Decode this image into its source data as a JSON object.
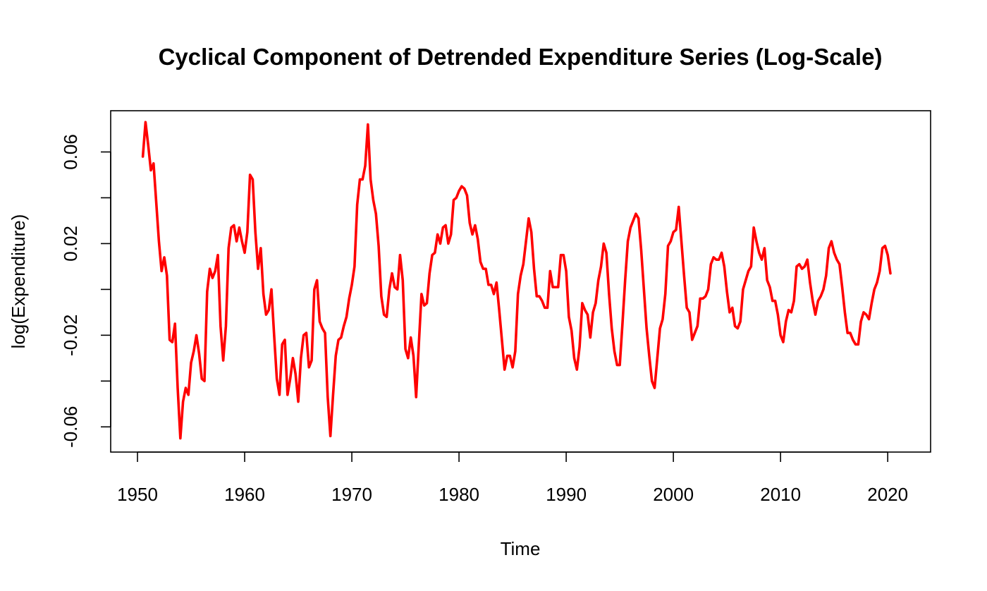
{
  "chart_data": {
    "type": "line",
    "title": "Cyclical Component of Detrended Expenditure Series (Log-Scale)",
    "xlabel": "Time",
    "ylabel": "log(Expenditure)",
    "xlim": [
      1947.5,
      2024.0
    ],
    "ylim": [
      -0.071,
      0.078
    ],
    "x_ticks": [
      1950,
      1960,
      1970,
      1980,
      1990,
      2000,
      2010,
      2020
    ],
    "x_tick_labels": [
      "1950",
      "1960",
      "1970",
      "1980",
      "1990",
      "2000",
      "2010",
      "2020"
    ],
    "y_ticks": [
      -0.06,
      -0.04,
      -0.02,
      0.0,
      0.02,
      0.04,
      0.06
    ],
    "y_tick_labels": [
      "-0.06",
      "",
      "-0.02",
      "",
      "0.02",
      "",
      "0.06"
    ],
    "grid": false,
    "legend": "none",
    "series": [
      {
        "color": "#ff0000",
        "x_start": 1950.5,
        "x_step": 0.25,
        "values": [
          0.058,
          0.073,
          0.063,
          0.052,
          0.055,
          0.038,
          0.021,
          0.008,
          0.014,
          0.006,
          -0.022,
          -0.023,
          -0.015,
          -0.043,
          -0.065,
          -0.049,
          -0.043,
          -0.046,
          -0.032,
          -0.027,
          -0.02,
          -0.028,
          -0.039,
          -0.04,
          -0.001,
          0.009,
          0.005,
          0.008,
          0.015,
          -0.016,
          -0.031,
          -0.016,
          0.018,
          0.027,
          0.028,
          0.021,
          0.027,
          0.021,
          0.016,
          0.025,
          0.05,
          0.048,
          0.025,
          0.009,
          0.018,
          -0.002,
          -0.011,
          -0.009,
          0.0,
          -0.02,
          -0.039,
          -0.046,
          -0.024,
          -0.022,
          -0.046,
          -0.039,
          -0.03,
          -0.037,
          -0.049,
          -0.03,
          -0.02,
          -0.019,
          -0.034,
          -0.031,
          0.0,
          0.004,
          -0.014,
          -0.017,
          -0.019,
          -0.047,
          -0.064,
          -0.046,
          -0.029,
          -0.022,
          -0.021,
          -0.016,
          -0.012,
          -0.004,
          0.002,
          0.01,
          0.037,
          0.048,
          0.048,
          0.054,
          0.072,
          0.048,
          0.039,
          0.033,
          0.019,
          -0.003,
          -0.011,
          -0.012,
          0.0,
          0.007,
          0.001,
          0.0,
          0.015,
          0.004,
          -0.026,
          -0.03,
          -0.021,
          -0.029,
          -0.047,
          -0.024,
          -0.002,
          -0.007,
          -0.006,
          0.007,
          0.015,
          0.016,
          0.024,
          0.02,
          0.027,
          0.028,
          0.02,
          0.024,
          0.039,
          0.04,
          0.043,
          0.045,
          0.044,
          0.041,
          0.029,
          0.024,
          0.028,
          0.022,
          0.012,
          0.009,
          0.009,
          0.002,
          0.002,
          -0.002,
          0.003,
          -0.009,
          -0.022,
          -0.035,
          -0.029,
          -0.029,
          -0.034,
          -0.027,
          -0.002,
          0.006,
          0.011,
          0.021,
          0.031,
          0.025,
          0.009,
          -0.003,
          -0.003,
          -0.005,
          -0.008,
          -0.008,
          0.008,
          0.001,
          0.001,
          0.001,
          0.015,
          0.015,
          0.008,
          -0.012,
          -0.018,
          -0.03,
          -0.035,
          -0.025,
          -0.006,
          -0.009,
          -0.011,
          -0.021,
          -0.01,
          -0.006,
          0.004,
          0.01,
          0.02,
          0.016,
          -0.002,
          -0.017,
          -0.027,
          -0.033,
          -0.033,
          -0.015,
          0.004,
          0.021,
          0.027,
          0.03,
          0.033,
          0.031,
          0.017,
          0.0,
          -0.017,
          -0.029,
          -0.04,
          -0.043,
          -0.03,
          -0.017,
          -0.013,
          -0.002,
          0.019,
          0.021,
          0.025,
          0.026,
          0.036,
          0.021,
          0.006,
          -0.008,
          -0.01,
          -0.022,
          -0.019,
          -0.016,
          -0.004,
          -0.004,
          -0.003,
          0.0,
          0.011,
          0.014,
          0.013,
          0.013,
          0.016,
          0.01,
          -0.001,
          -0.01,
          -0.008,
          -0.016,
          -0.017,
          -0.014,
          0.0,
          0.004,
          0.008,
          0.01,
          0.027,
          0.021,
          0.016,
          0.013,
          0.018,
          0.004,
          0.001,
          -0.005,
          -0.005,
          -0.011,
          -0.02,
          -0.023,
          -0.014,
          -0.009,
          -0.01,
          -0.005,
          0.01,
          0.011,
          0.009,
          0.01,
          0.013,
          0.003,
          -0.005,
          -0.011,
          -0.005,
          -0.003,
          0.0,
          0.006,
          0.018,
          0.021,
          0.016,
          0.013,
          0.011,
          0.001,
          -0.01,
          -0.019,
          -0.019,
          -0.022,
          -0.024,
          -0.024,
          -0.014,
          -0.01,
          -0.011,
          -0.013,
          -0.006,
          0.0,
          0.003,
          0.008,
          0.018,
          0.019,
          0.015,
          0.007
        ]
      }
    ]
  }
}
